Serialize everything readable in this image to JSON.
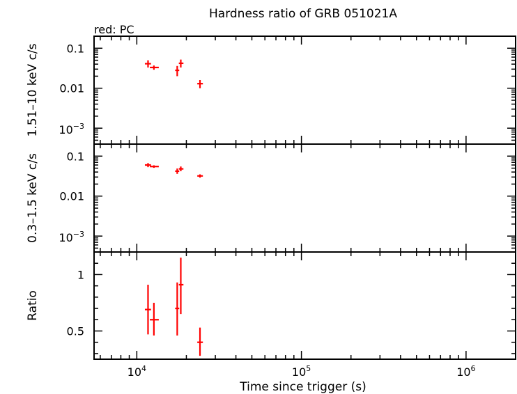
{
  "title": "Hardness ratio of GRB 051021A",
  "legend_note": "red: PC",
  "xlabel": "Time since trigger (s)",
  "colors": {
    "series": "#ff0000",
    "axes": "#000000",
    "background": "#ffffff"
  },
  "chart_data": [
    {
      "type": "scatter",
      "panel": "top",
      "ylabel": "1.51–10 keV c/s",
      "xscale": "log",
      "yscale": "log",
      "xlim": [
        5500,
        2000000
      ],
      "ylim": [
        0.0004,
        0.2
      ],
      "xticks": [
        {
          "v": 10000,
          "base": "10",
          "exp": "4"
        },
        {
          "v": 100000,
          "base": "10",
          "exp": "5"
        },
        {
          "v": 1000000,
          "base": "10",
          "exp": "6"
        }
      ],
      "yticks": [
        {
          "v": 0.1,
          "label": "0.1"
        },
        {
          "v": 0.01,
          "label": "0.01"
        },
        {
          "v": 0.001,
          "base": "10",
          "exp": "−3"
        }
      ],
      "show_xtick_labels": false,
      "series": [
        {
          "color": "#ff0000",
          "points": [
            {
              "x": 11700,
              "xlo": 11200,
              "xhi": 12200,
              "y": 0.041,
              "ylo": 0.033,
              "yhi": 0.05
            },
            {
              "x": 12700,
              "xlo": 12000,
              "xhi": 13600,
              "y": 0.033,
              "ylo": 0.029,
              "yhi": 0.037
            },
            {
              "x": 17600,
              "xlo": 17100,
              "xhi": 18100,
              "y": 0.028,
              "ylo": 0.02,
              "yhi": 0.036
            },
            {
              "x": 18500,
              "xlo": 18000,
              "xhi": 19200,
              "y": 0.042,
              "ylo": 0.033,
              "yhi": 0.052
            },
            {
              "x": 24200,
              "xlo": 23300,
              "xhi": 25200,
              "y": 0.013,
              "ylo": 0.01,
              "yhi": 0.016
            }
          ]
        }
      ]
    },
    {
      "type": "scatter",
      "panel": "middle",
      "ylabel": "0.3–1.5 keV c/s",
      "xscale": "log",
      "yscale": "log",
      "xlim": [
        5500,
        2000000
      ],
      "ylim": [
        0.0004,
        0.2
      ],
      "xticks": [
        {
          "v": 10000,
          "base": "10",
          "exp": "4"
        },
        {
          "v": 100000,
          "base": "10",
          "exp": "5"
        },
        {
          "v": 1000000,
          "base": "10",
          "exp": "6"
        }
      ],
      "yticks": [
        {
          "v": 0.1,
          "label": "0.1"
        },
        {
          "v": 0.01,
          "label": "0.01"
        },
        {
          "v": 0.001,
          "base": "10",
          "exp": "−3"
        }
      ],
      "show_xtick_labels": false,
      "series": [
        {
          "color": "#ff0000",
          "points": [
            {
              "x": 11700,
              "xlo": 11200,
              "xhi": 12200,
              "y": 0.06,
              "ylo": 0.053,
              "yhi": 0.067
            },
            {
              "x": 12700,
              "xlo": 12000,
              "xhi": 13600,
              "y": 0.055,
              "ylo": 0.051,
              "yhi": 0.059
            },
            {
              "x": 17600,
              "xlo": 17100,
              "xhi": 18100,
              "y": 0.042,
              "ylo": 0.036,
              "yhi": 0.049
            },
            {
              "x": 18500,
              "xlo": 18000,
              "xhi": 19200,
              "y": 0.048,
              "ylo": 0.042,
              "yhi": 0.055
            },
            {
              "x": 24200,
              "xlo": 23300,
              "xhi": 25200,
              "y": 0.032,
              "ylo": 0.029,
              "yhi": 0.035
            }
          ]
        }
      ]
    },
    {
      "type": "scatter",
      "panel": "bottom",
      "ylabel": "Ratio",
      "xscale": "log",
      "yscale": "linear",
      "xlim": [
        5500,
        2000000
      ],
      "ylim": [
        0.25,
        1.2
      ],
      "xticks": [
        {
          "v": 10000,
          "base": "10",
          "exp": "4"
        },
        {
          "v": 100000,
          "base": "10",
          "exp": "5"
        },
        {
          "v": 1000000,
          "base": "10",
          "exp": "6"
        }
      ],
      "yticks": [
        {
          "v": 1.0,
          "label": "1"
        },
        {
          "v": 0.5,
          "label": "0.5"
        }
      ],
      "yminor": [
        0.3,
        0.4,
        0.6,
        0.7,
        0.8,
        0.9,
        1.1
      ],
      "show_xtick_labels": true,
      "series": [
        {
          "color": "#ff0000",
          "points": [
            {
              "x": 11700,
              "xlo": 11200,
              "xhi": 12200,
              "y": 0.69,
              "ylo": 0.47,
              "yhi": 0.91
            },
            {
              "x": 12700,
              "xlo": 12000,
              "xhi": 13600,
              "y": 0.6,
              "ylo": 0.46,
              "yhi": 0.75
            },
            {
              "x": 17600,
              "xlo": 17100,
              "xhi": 18100,
              "y": 0.7,
              "ylo": 0.46,
              "yhi": 0.93
            },
            {
              "x": 18500,
              "xlo": 18000,
              "xhi": 19200,
              "y": 0.91,
              "ylo": 0.65,
              "yhi": 1.15
            },
            {
              "x": 24200,
              "xlo": 23300,
              "xhi": 25200,
              "y": 0.4,
              "ylo": 0.28,
              "yhi": 0.53
            }
          ]
        }
      ]
    }
  ]
}
